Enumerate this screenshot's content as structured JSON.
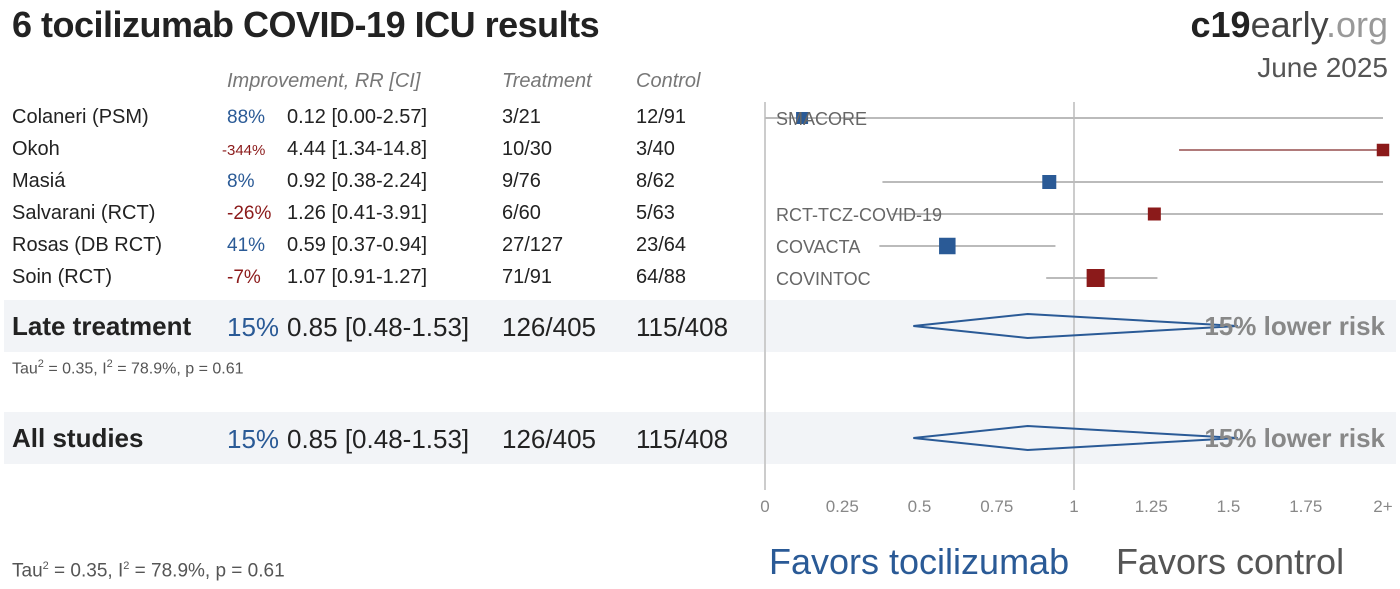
{
  "title": "6 tocilizumab COVID-19 ICU results",
  "brand": {
    "part1": "c19",
    "part2": "early",
    "part3": ".org"
  },
  "date": "June 2025",
  "headers": {
    "improvement": "Improvement, RR [CI]",
    "treatment": "Treatment",
    "control": "Control"
  },
  "rows": [
    {
      "name": "Colaneri (PSM)",
      "improvement": "88%",
      "rr": "0.12 [0.00-2.57]",
      "treatment": "3/21",
      "control": "12/91",
      "label": "SMACORE"
    },
    {
      "name": "Okoh",
      "improvement": "-344%",
      "rr": "4.44 [1.34-14.8]",
      "treatment": "10/30",
      "control": "3/40",
      "label": ""
    },
    {
      "name": "Masiá",
      "improvement": "8%",
      "rr": "0.92 [0.38-2.24]",
      "treatment": "9/76",
      "control": "8/62",
      "label": ""
    },
    {
      "name": "Salvarani (RCT)",
      "improvement": "-26%",
      "rr": "1.26 [0.41-3.91]",
      "treatment": "6/60",
      "control": "5/63",
      "label": "RCT-TCZ-COVID-19"
    },
    {
      "name": "Rosas (DB RCT)",
      "improvement": "41%",
      "rr": "0.59 [0.37-0.94]",
      "treatment": "27/127",
      "control": "23/64",
      "label": "COVACTA"
    },
    {
      "name": "Soin (RCT)",
      "improvement": "-7%",
      "rr": "1.07 [0.91-1.27]",
      "treatment": "71/91",
      "control": "64/88",
      "label": "COVINTOC"
    }
  ],
  "summaries": [
    {
      "name": "Late treatment",
      "improvement": "15%",
      "rr": "0.85 [0.48-1.53]",
      "treatment": "126/405",
      "control": "115/408",
      "risk_label": "15% lower risk",
      "stat": {
        "tau_pre": "Tau",
        "tau_sup": "2",
        "mid": " = 0.35, I",
        "i_sup": "2",
        "post": " = 78.9%, p = 0.61"
      }
    },
    {
      "name": "All studies",
      "improvement": "15%",
      "rr": "0.85 [0.48-1.53]",
      "treatment": "126/405",
      "control": "115/408",
      "risk_label": "15% lower risk"
    }
  ],
  "footer_stat": {
    "tau_pre": "Tau",
    "tau_sup": "2",
    "mid": " = 0.35, I",
    "i_sup": "2",
    "post": " = 78.9%, p = 0.61"
  },
  "favors": {
    "treatment": "Favors tocilizumab",
    "control": "Favors control"
  },
  "colors": {
    "favorable": "#2a5a96",
    "unfavorable": "#8b1a1a",
    "ci_line": "#bbbbbb",
    "ref_line": "#cccccc"
  },
  "chart_data": {
    "type": "forest",
    "xlabel": "",
    "x_ticks": [
      "0",
      "0.25",
      "0.5",
      "0.75",
      "1",
      "1.25",
      "1.5",
      "1.75",
      "2+"
    ],
    "xlim": [
      0,
      2
    ],
    "reference": 1,
    "studies": [
      {
        "name": "Colaneri (PSM)",
        "rr": 0.12,
        "lo": 0.0,
        "hi": 2.57,
        "weight": 0.4
      },
      {
        "name": "Okoh",
        "rr": 4.44,
        "lo": 1.34,
        "hi": 14.8,
        "weight": 0.45
      },
      {
        "name": "Masiá",
        "rr": 0.92,
        "lo": 0.38,
        "hi": 2.24,
        "weight": 0.6
      },
      {
        "name": "Salvarani (RCT)",
        "rr": 1.26,
        "lo": 0.41,
        "hi": 3.91,
        "weight": 0.5
      },
      {
        "name": "Rosas (DB RCT)",
        "rr": 0.59,
        "lo": 0.37,
        "hi": 0.94,
        "weight": 0.85
      },
      {
        "name": "Soin (RCT)",
        "rr": 1.07,
        "lo": 0.91,
        "hi": 1.27,
        "weight": 1.0
      }
    ],
    "pooled": [
      {
        "name": "Late treatment",
        "rr": 0.85,
        "lo": 0.48,
        "hi": 1.53
      },
      {
        "name": "All studies",
        "rr": 0.85,
        "lo": 0.48,
        "hi": 1.53
      }
    ]
  }
}
